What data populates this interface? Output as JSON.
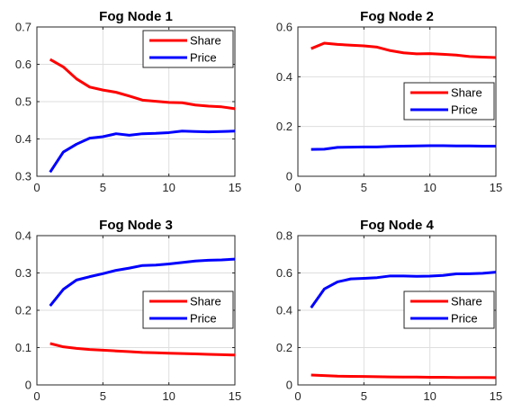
{
  "chart_data": [
    {
      "type": "line",
      "title": "Fog Node 1",
      "xlabel": "",
      "ylabel": "",
      "xlim": [
        0,
        15
      ],
      "ylim": [
        0.3,
        0.7
      ],
      "xticks": [
        0,
        5,
        10,
        15
      ],
      "xtick_labels": [
        "0",
        "5",
        "10",
        "15"
      ],
      "yticks": [
        0.3,
        0.4,
        0.5,
        0.6,
        0.7
      ],
      "ytick_labels": [
        "0.3",
        "0.4",
        "0.5",
        "0.6",
        "0.7"
      ],
      "grid": true,
      "legend_position": "top-right",
      "x": [
        1,
        2,
        3,
        4,
        5,
        6,
        7,
        8,
        9,
        10,
        11,
        12,
        13,
        14,
        15
      ],
      "series": [
        {
          "name": "Share",
          "color": "#ff0000",
          "values": [
            0.613,
            0.593,
            0.561,
            0.539,
            0.531,
            0.525,
            0.515,
            0.504,
            0.501,
            0.498,
            0.497,
            0.491,
            0.488,
            0.486,
            0.481
          ]
        },
        {
          "name": "Price",
          "color": "#0000ff",
          "values": [
            0.311,
            0.365,
            0.386,
            0.402,
            0.406,
            0.414,
            0.41,
            0.414,
            0.415,
            0.417,
            0.421,
            0.42,
            0.419,
            0.42,
            0.421
          ]
        }
      ]
    },
    {
      "type": "line",
      "title": "Fog Node 2",
      "xlabel": "",
      "ylabel": "",
      "xlim": [
        0,
        15
      ],
      "ylim": [
        0,
        0.6
      ],
      "xticks": [
        0,
        5,
        10,
        15
      ],
      "xtick_labels": [
        "0",
        "5",
        "10",
        "15"
      ],
      "yticks": [
        0,
        0.2,
        0.4,
        0.6
      ],
      "ytick_labels": [
        "0",
        "0.2",
        "0.4",
        "0.6"
      ],
      "grid": true,
      "legend_position": "right",
      "x": [
        1,
        2,
        3,
        4,
        5,
        6,
        7,
        8,
        9,
        10,
        11,
        12,
        13,
        14,
        15
      ],
      "series": [
        {
          "name": "Share",
          "color": "#ff0000",
          "values": [
            0.513,
            0.535,
            0.53,
            0.527,
            0.524,
            0.519,
            0.505,
            0.496,
            0.492,
            0.493,
            0.49,
            0.487,
            0.481,
            0.479,
            0.477
          ]
        },
        {
          "name": "Price",
          "color": "#0000ff",
          "values": [
            0.108,
            0.109,
            0.116,
            0.117,
            0.118,
            0.118,
            0.12,
            0.121,
            0.122,
            0.123,
            0.123,
            0.122,
            0.122,
            0.121,
            0.121
          ]
        }
      ]
    },
    {
      "type": "line",
      "title": "Fog Node 3",
      "xlabel": "",
      "ylabel": "",
      "xlim": [
        0,
        15
      ],
      "ylim": [
        0,
        0.4
      ],
      "xticks": [
        0,
        5,
        10,
        15
      ],
      "xtick_labels": [
        "0",
        "5",
        "10",
        "15"
      ],
      "yticks": [
        0,
        0.1,
        0.2,
        0.3,
        0.4
      ],
      "ytick_labels": [
        "0",
        "0.1",
        "0.2",
        "0.3",
        "0.4"
      ],
      "grid": true,
      "legend_position": "bottom-right",
      "x": [
        1,
        2,
        3,
        4,
        5,
        6,
        7,
        8,
        9,
        10,
        11,
        12,
        13,
        14,
        15
      ],
      "series": [
        {
          "name": "Share",
          "color": "#ff0000",
          "values": [
            0.111,
            0.102,
            0.098,
            0.095,
            0.093,
            0.091,
            0.089,
            0.087,
            0.086,
            0.085,
            0.084,
            0.083,
            0.082,
            0.081,
            0.08
          ]
        },
        {
          "name": "Price",
          "color": "#0000ff",
          "values": [
            0.212,
            0.256,
            0.281,
            0.29,
            0.298,
            0.307,
            0.313,
            0.32,
            0.321,
            0.324,
            0.328,
            0.332,
            0.334,
            0.335,
            0.337
          ]
        }
      ]
    },
    {
      "type": "line",
      "title": "Fog Node 4",
      "xlabel": "",
      "ylabel": "",
      "xlim": [
        0,
        15
      ],
      "ylim": [
        0,
        0.8
      ],
      "xticks": [
        0,
        5,
        10,
        15
      ],
      "xtick_labels": [
        "0",
        "5",
        "10",
        "15"
      ],
      "yticks": [
        0,
        0.2,
        0.4,
        0.6,
        0.8
      ],
      "ytick_labels": [
        "0",
        "0.2",
        "0.4",
        "0.6",
        "0.8"
      ],
      "grid": true,
      "legend_position": "bottom-right",
      "x": [
        1,
        2,
        3,
        4,
        5,
        6,
        7,
        8,
        9,
        10,
        11,
        12,
        13,
        14,
        15
      ],
      "series": [
        {
          "name": "Share",
          "color": "#ff0000",
          "values": [
            0.053,
            0.05,
            0.047,
            0.046,
            0.045,
            0.044,
            0.043,
            0.042,
            0.042,
            0.041,
            0.041,
            0.04,
            0.04,
            0.04,
            0.039
          ]
        },
        {
          "name": "Price",
          "color": "#0000ff",
          "values": [
            0.414,
            0.514,
            0.552,
            0.568,
            0.571,
            0.575,
            0.584,
            0.584,
            0.582,
            0.583,
            0.587,
            0.595,
            0.596,
            0.598,
            0.604
          ]
        }
      ]
    }
  ]
}
